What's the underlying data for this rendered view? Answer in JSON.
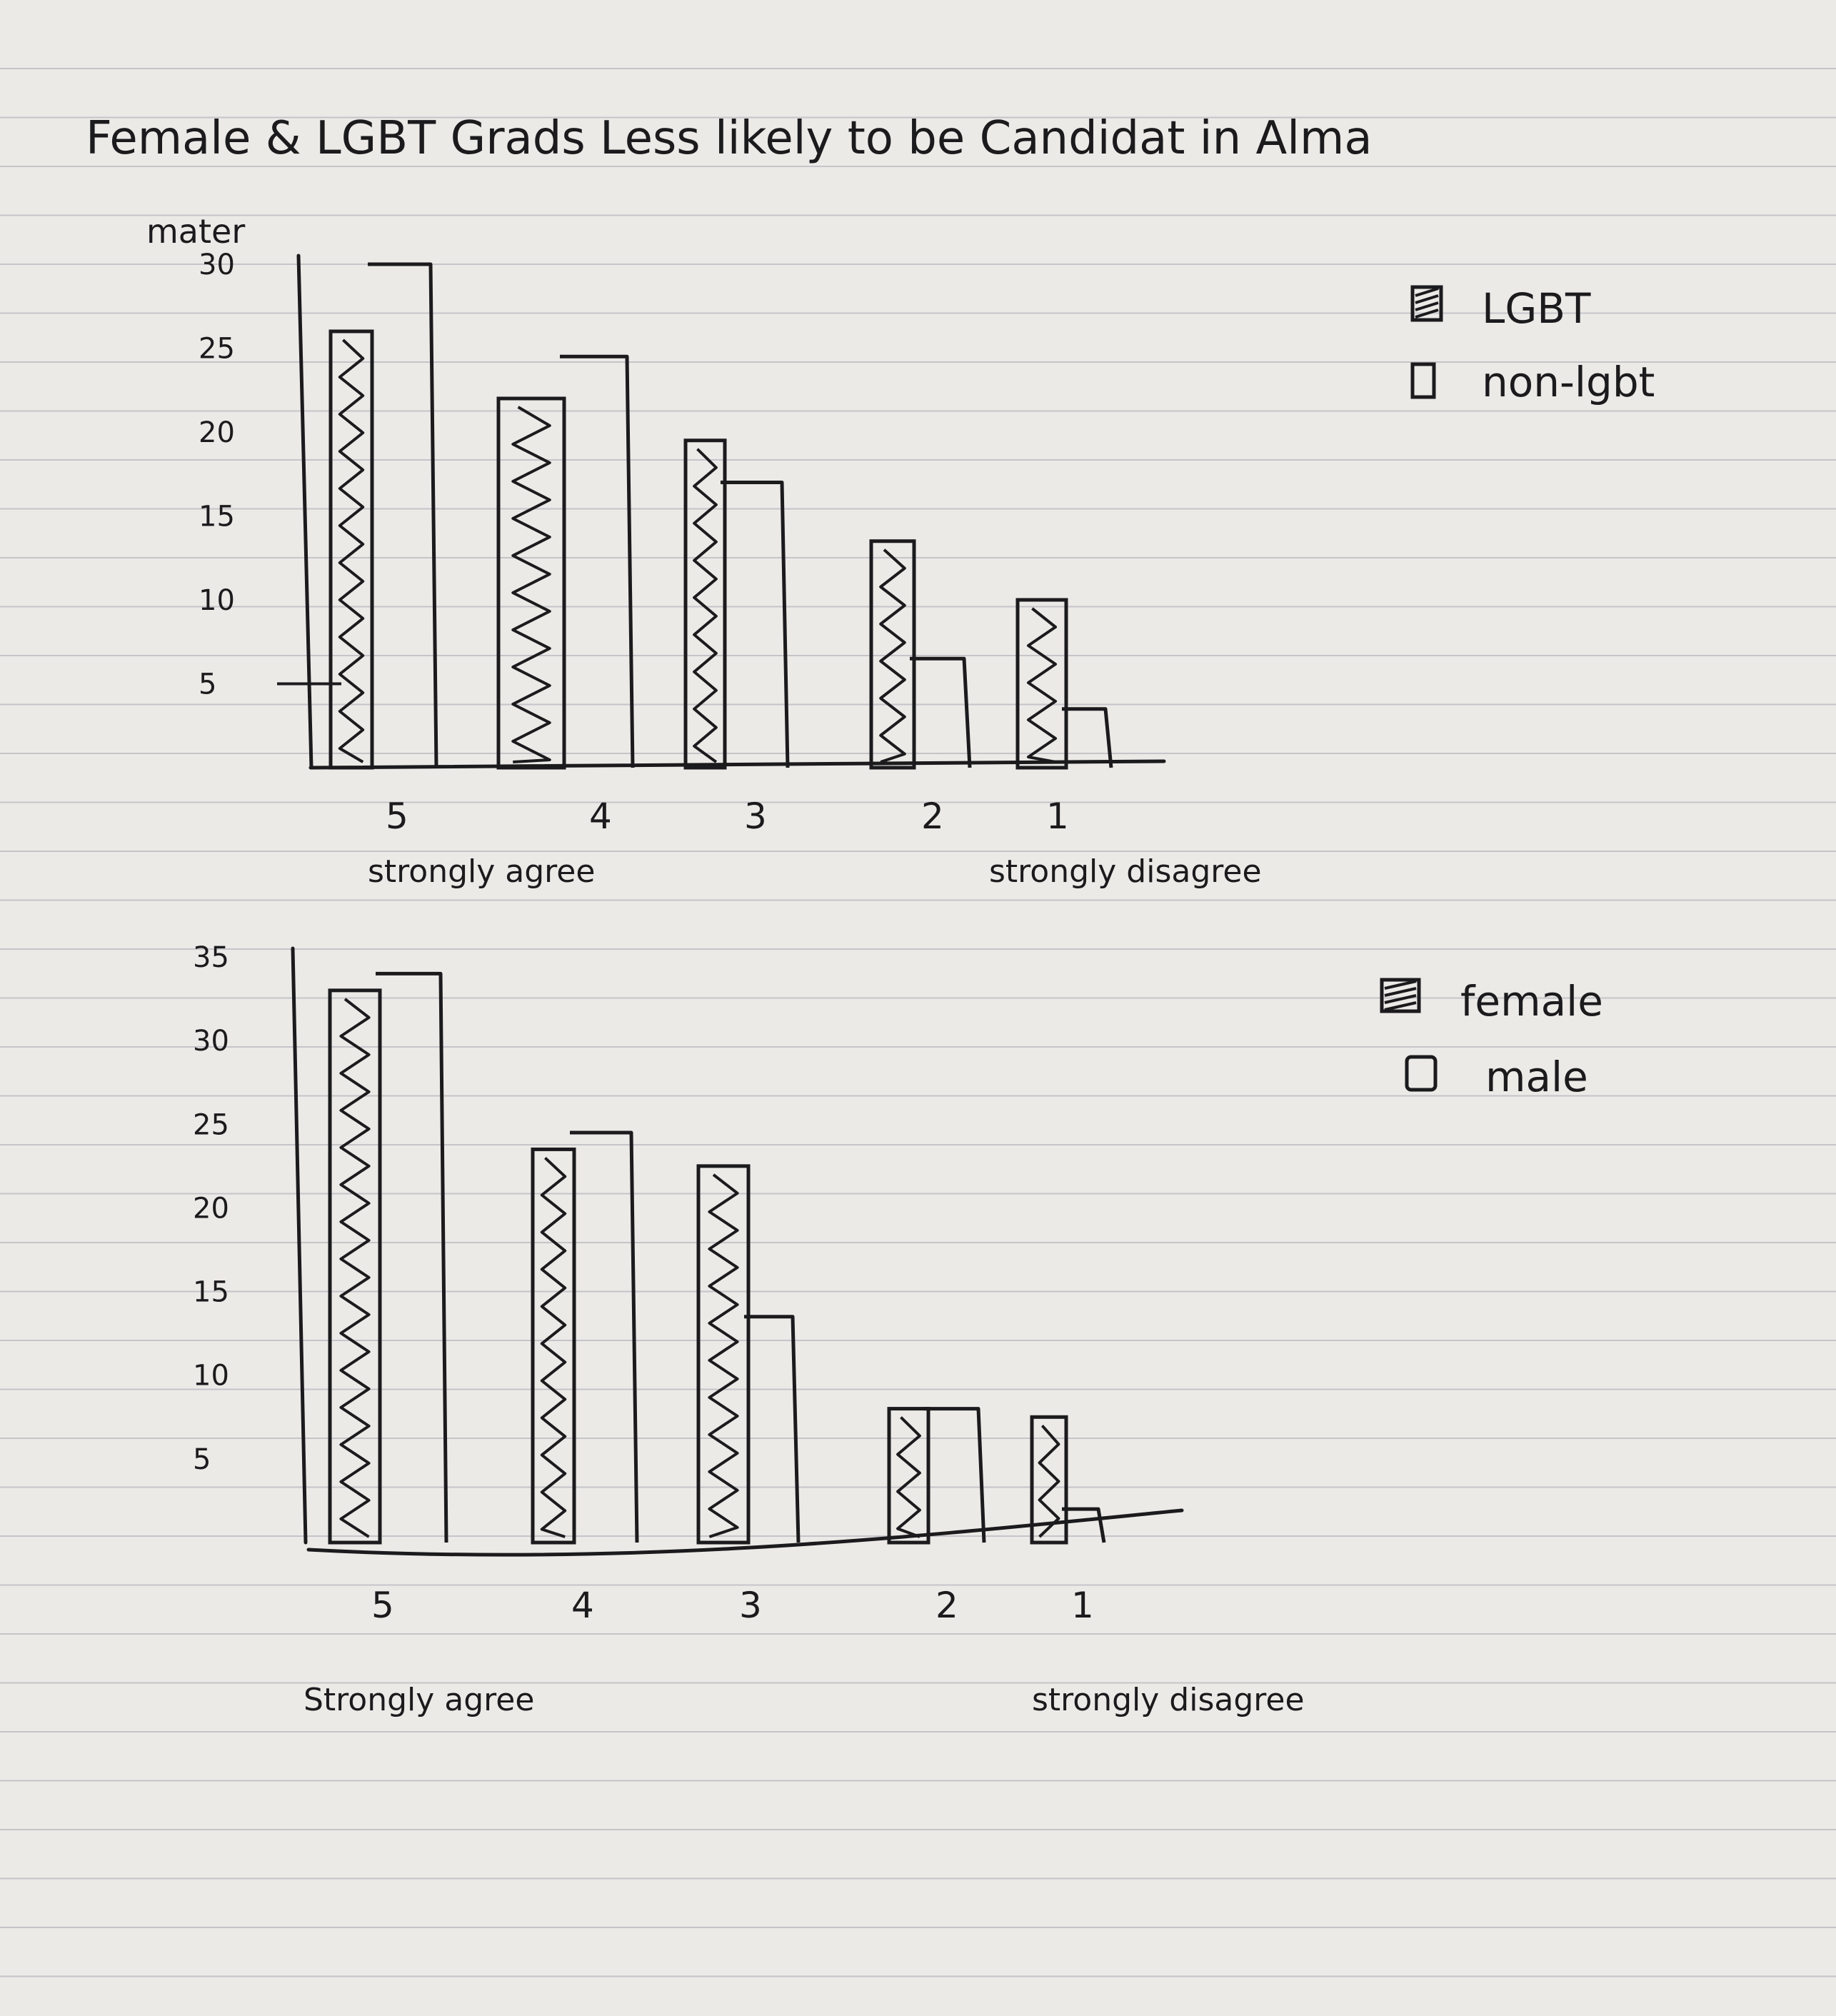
{
  "title": "Female & LGBT Grads Less likely to be Candidat in Alma",
  "chart_data": [
    {
      "type": "bar",
      "ylabel": "mater",
      "categories": [
        "5",
        "4",
        "3",
        "2",
        "1"
      ],
      "category_notes": {
        "5": "strongly agree",
        "1": "strongly disagree"
      },
      "yticks": [
        "30",
        "25",
        "20",
        "15",
        "10",
        "5"
      ],
      "ylim": [
        0,
        30
      ],
      "series": [
        {
          "name": "LGBT",
          "values": [
            26,
            22,
            19.5,
            13.5,
            10
          ],
          "fill": "hatched"
        },
        {
          "name": "non-lgbt",
          "values": [
            30,
            24.5,
            17,
            6.5,
            3.5
          ],
          "fill": "empty"
        }
      ],
      "legend_position": "top-right"
    },
    {
      "type": "bar",
      "categories": [
        "5",
        "4",
        "3",
        "2",
        "1"
      ],
      "category_notes": {
        "5": "Strongly agree",
        "1": "strongly disagree"
      },
      "yticks": [
        "35",
        "30",
        "25",
        "20",
        "15",
        "10",
        "5"
      ],
      "ylim": [
        0,
        35
      ],
      "series": [
        {
          "name": "female",
          "values": [
            33,
            23.5,
            22.5,
            8,
            7.5
          ],
          "fill": "hatched"
        },
        {
          "name": "male",
          "values": [
            34,
            24.5,
            13.5,
            8,
            2
          ],
          "fill": "empty"
        }
      ],
      "legend_position": "top-right"
    }
  ],
  "colors": {
    "paper": "#eceae7",
    "rule": "#b9b8bf",
    "margin_shadow": "#d9d7d3",
    "ink": "#1b1b1d"
  }
}
